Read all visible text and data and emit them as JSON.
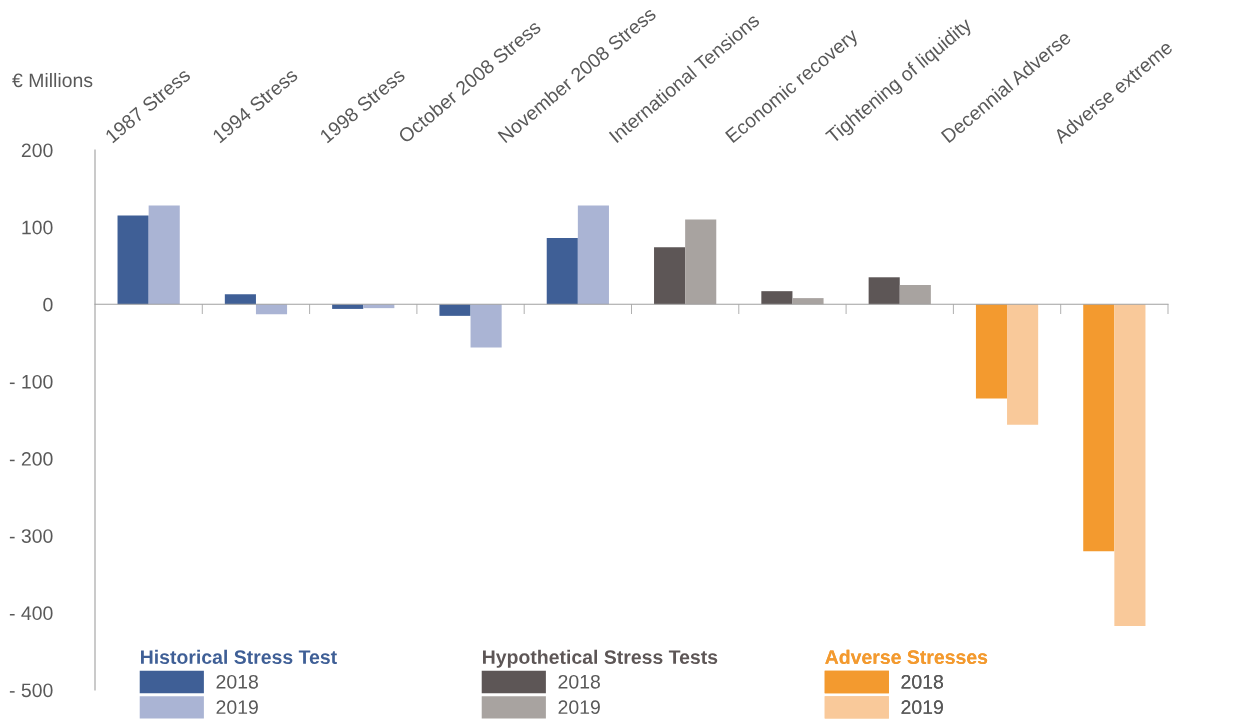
{
  "chart_data": {
    "type": "bar",
    "ylabel": "€ Millions",
    "categories": [
      "1987 Stress",
      "1994 Stress",
      "1998 Stress",
      "October 2008 Stress",
      "November 2008 Stress",
      "International Tensions",
      "Economic recovery",
      "Tightening of liquidity",
      "Decennial Adverse",
      "Adverse extreme"
    ],
    "series": [
      {
        "name": "2018",
        "color": "#3f5f96",
        "values": [
          115,
          13,
          -6,
          -15,
          86,
          null,
          null,
          null,
          null,
          null
        ]
      },
      {
        "name": "2019",
        "color": "#aab4d4",
        "values": [
          128,
          -13,
          -5,
          -56,
          128,
          null,
          null,
          null,
          null,
          null
        ]
      },
      {
        "name": "2018",
        "color": "#5d5656",
        "values": [
          null,
          null,
          null,
          null,
          null,
          74,
          17,
          35,
          null,
          null
        ]
      },
      {
        "name": "2019",
        "color": "#a8a3a0",
        "values": [
          null,
          null,
          null,
          null,
          null,
          110,
          8,
          25,
          null,
          null
        ]
      },
      {
        "name": "2018",
        "color": "#f39a2f",
        "values": [
          null,
          null,
          null,
          null,
          null,
          null,
          null,
          null,
          -122,
          -320
        ]
      },
      {
        "name": "2019",
        "color": "#f9c99a",
        "values": [
          null,
          null,
          null,
          null,
          null,
          null,
          null,
          null,
          -156,
          -417
        ]
      }
    ],
    "annotations": [
      "Historical Stress Test",
      "Hypothetical Stress Tests",
      "Adverse Stresses"
    ],
    "ylim": [
      -500,
      200
    ],
    "yticks": [
      200,
      100,
      0,
      {
        "value": -100,
        "label": "- 100"
      },
      {
        "value": -200,
        "label": "- 200"
      },
      {
        "value": -300,
        "label": "- 300"
      },
      {
        "value": -400,
        "label": "- 400"
      },
      {
        "value": -500,
        "label": "- 500"
      }
    ],
    "legend": "bottom left"
  }
}
